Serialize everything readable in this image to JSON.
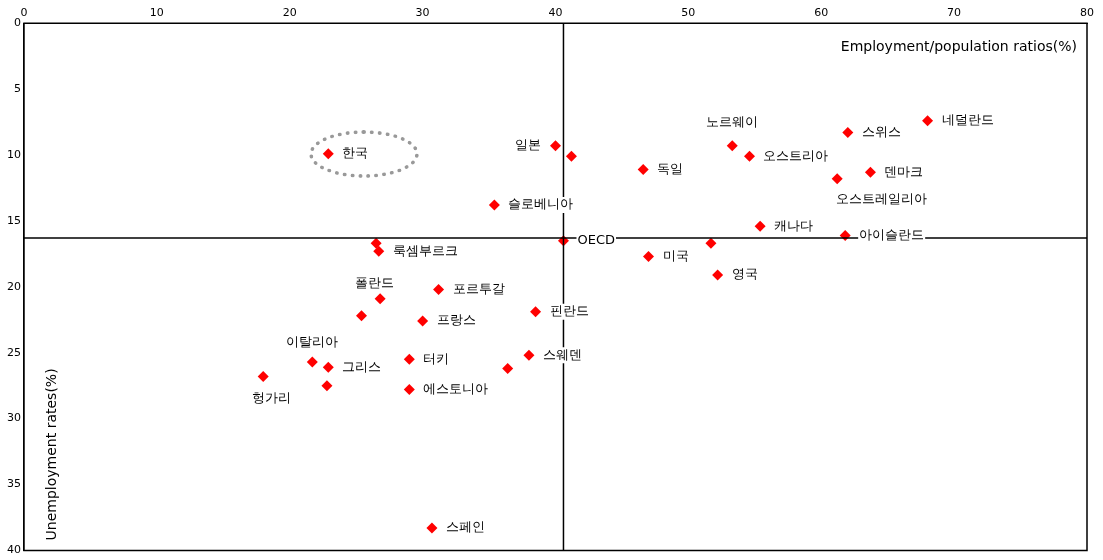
{
  "chart_data": {
    "type": "scatter",
    "xlabel": "Employment/population ratios(%)",
    "ylabel": "Unemployment rates(%)",
    "xlim": [
      0,
      80
    ],
    "xticks": [
      0,
      10,
      20,
      30,
      40,
      50,
      60,
      70,
      80
    ],
    "ylim": [
      40,
      0
    ],
    "yticks": [
      0,
      5,
      10,
      15,
      20,
      25,
      30,
      35,
      40
    ],
    "grid": false,
    "legend": false,
    "marker": "diamond",
    "series": [
      {
        "color": "#ff0000",
        "x": [
          22.9,
          40.0,
          41.2,
          35.4,
          26.5,
          26.7,
          40.6,
          46.6,
          53.3,
          54.6,
          62.0,
          68.0,
          63.7,
          61.2,
          55.4,
          61.8,
          51.7,
          47.0,
          52.2,
          31.2,
          26.8,
          25.4,
          30.0,
          38.5,
          21.7,
          22.9,
          18.0,
          22.8,
          29.0,
          29.0,
          36.4,
          38.0,
          30.7
        ],
        "values": [
          9.9,
          9.3,
          10.1,
          13.8,
          16.7,
          17.3,
          16.5,
          11.1,
          9.3,
          10.1,
          8.3,
          7.4,
          11.3,
          11.8,
          15.4,
          16.1,
          16.7,
          17.7,
          19.1,
          20.2,
          20.9,
          22.2,
          22.6,
          21.9,
          25.7,
          26.1,
          26.8,
          27.5,
          25.5,
          27.8,
          26.2,
          25.2,
          38.3
        ]
      }
    ],
    "ref_lines": [
      {
        "axis": "x",
        "value": 40.6,
        "color": "#000000"
      },
      {
        "axis": "y",
        "value": 16.3,
        "color": "#000000"
      }
    ],
    "annotations": [
      {
        "text": "한국",
        "x": 22.9,
        "y": 9.9
      },
      {
        "text": "일본",
        "x": 40.0,
        "y": 9.3
      },
      {
        "text": "슬로베니아",
        "x": 35.4,
        "y": 13.8
      },
      {
        "text": "룩셈부르크",
        "x": 26.7,
        "y": 17.3
      },
      {
        "text": "OECD",
        "x": 40.6,
        "y": 16.5
      },
      {
        "text": "독일",
        "x": 46.6,
        "y": 11.1
      },
      {
        "text": "노르웨이",
        "x": 53.3,
        "y": 9.3
      },
      {
        "text": "오스트리아",
        "x": 54.6,
        "y": 10.1
      },
      {
        "text": "스위스",
        "x": 62.0,
        "y": 8.3
      },
      {
        "text": "네덜란드",
        "x": 68.0,
        "y": 7.4
      },
      {
        "text": "덴마크",
        "x": 63.7,
        "y": 11.3
      },
      {
        "text": "오스트레일리아",
        "x": 61.2,
        "y": 11.8
      },
      {
        "text": "캐나다",
        "x": 55.4,
        "y": 15.4
      },
      {
        "text": "아이슬란드",
        "x": 61.8,
        "y": 16.1
      },
      {
        "text": "미국",
        "x": 47.0,
        "y": 17.7
      },
      {
        "text": "영국",
        "x": 52.2,
        "y": 19.1
      },
      {
        "text": "포르투갈",
        "x": 31.2,
        "y": 20.2
      },
      {
        "text": "폴란드",
        "x": 26.8,
        "y": 20.9
      },
      {
        "text": "프랑스",
        "x": 30.0,
        "y": 22.6
      },
      {
        "text": "핀란드",
        "x": 38.5,
        "y": 21.9
      },
      {
        "text": "이탈리아",
        "x": 21.7,
        "y": 25.7
      },
      {
        "text": "그리스",
        "x": 22.9,
        "y": 26.1
      },
      {
        "text": "헝가리",
        "x": 18.0,
        "y": 26.8
      },
      {
        "text": "터키",
        "x": 29.0,
        "y": 25.5
      },
      {
        "text": "에스토니아",
        "x": 29.0,
        "y": 27.8
      },
      {
        "text": "스웨덴",
        "x": 38.0,
        "y": 25.2
      },
      {
        "text": "스페인",
        "x": 30.7,
        "y": 38.3
      }
    ]
  }
}
